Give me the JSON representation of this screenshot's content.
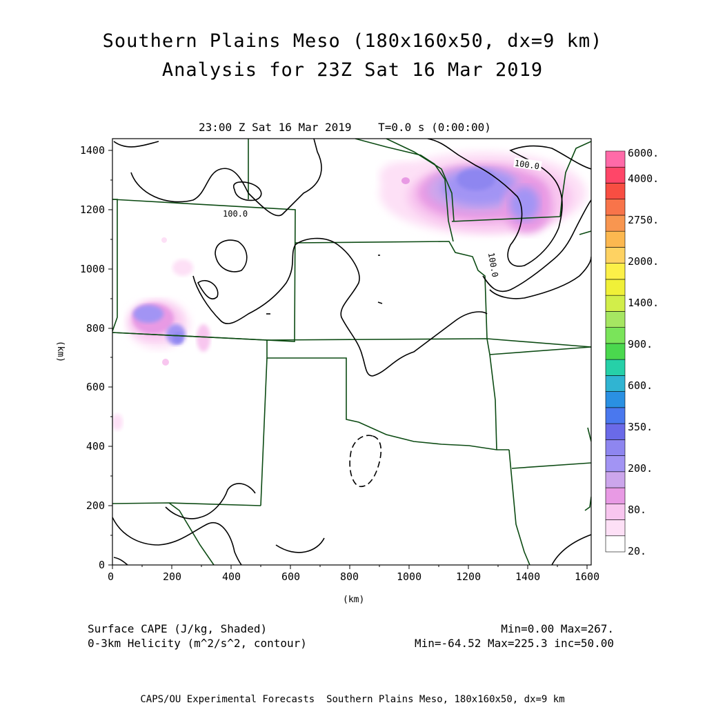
{
  "header": {
    "title_line1": "Southern Plains Meso (180x160x50, dx=9 km)",
    "title_line2": "Analysis for 23Z Sat 16 Mar 2019",
    "valid_time": "23:00 Z Sat 16 Mar 2019    T=0.0 s (0:00:00)"
  },
  "axes": {
    "x_ticks": [
      "0",
      "200",
      "400",
      "600",
      "800",
      "1000",
      "1200",
      "1400",
      "1600"
    ],
    "y_ticks": [
      "0",
      "200",
      "400",
      "600",
      "800",
      "1000",
      "1200",
      "1400"
    ],
    "x_label": "(km)",
    "y_label": "(km)",
    "x_range": [
      0,
      1620
    ],
    "y_range": [
      0,
      1440
    ]
  },
  "colorbar": {
    "labels": [
      "6000.",
      "4000.",
      "2750.",
      "2000.",
      "1400.",
      "900.",
      "600.",
      "350.",
      "200.",
      "80.",
      "20."
    ],
    "colors": [
      "#ffffff",
      "#fde0f6",
      "#f8c6ef",
      "#e89ae4",
      "#cca6ec",
      "#a294f4",
      "#8e86f0",
      "#6a6ae8",
      "#4a78ee",
      "#2a90e2",
      "#30b4d2",
      "#26d0a8",
      "#4ad84e",
      "#7ae45a",
      "#a6e662",
      "#d2ee4a",
      "#f0f038",
      "#fcf048",
      "#fed262",
      "#fcb850",
      "#f89650",
      "#f8744a",
      "#f84e42",
      "#ff4668",
      "#ff6aa8"
    ]
  },
  "contour_labels": [
    "100.0",
    "100.0",
    "100.0"
  ],
  "legend": {
    "field1": "Surface CAPE (J/kg, Shaded)",
    "field1_stats": "Min=0.00 Max=267.",
    "field2": "0-3km Helicity (m^2/s^2, contour)",
    "field2_stats": "Min=-64.52 Max=225.3 inc=50.00"
  },
  "footer": "CAPS/OU Experimental Forecasts  Southern Plains Meso, 180x160x50, dx=9 km"
}
